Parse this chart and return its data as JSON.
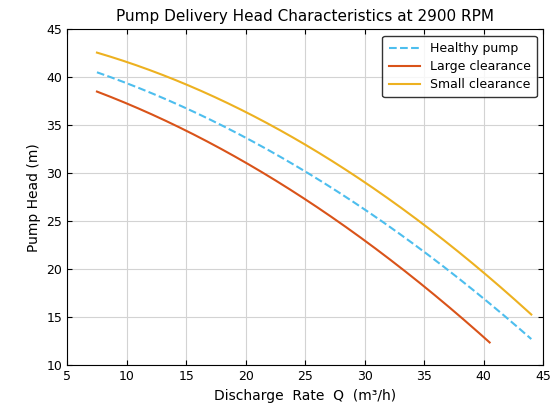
{
  "title": "Pump Delivery Head Characteristics at 2900 RPM",
  "xlabel": "Discharge  Rate  Q  (m³/h)",
  "ylabel": "Pump Head (m)",
  "xlim": [
    5,
    45
  ],
  "ylim": [
    10,
    45
  ],
  "xticks": [
    5,
    10,
    15,
    20,
    25,
    30,
    35,
    40,
    45
  ],
  "yticks": [
    10,
    15,
    20,
    25,
    30,
    35,
    40,
    45
  ],
  "healthy_pump": {
    "label": "Healthy pump",
    "color": "#4DBEEE",
    "linestyle": "--",
    "linewidth": 1.5,
    "x_start": 7.5,
    "x_end": 44.0,
    "pts": [
      [
        7.5,
        40.5
      ],
      [
        15,
        36.5
      ],
      [
        20,
        34.0
      ],
      [
        25,
        30.5
      ],
      [
        30,
        26.5
      ],
      [
        35,
        21.5
      ],
      [
        40,
        16.0
      ],
      [
        44,
        13.5
      ]
    ]
  },
  "large_clearance": {
    "label": "Large clearance",
    "color": "#D95319",
    "linestyle": "-",
    "linewidth": 1.5,
    "x_start": 7.5,
    "x_end": 40.5,
    "pts": [
      [
        7.5,
        38.5
      ],
      [
        15,
        34.5
      ],
      [
        20,
        31.0
      ],
      [
        25,
        27.5
      ],
      [
        30,
        23.0
      ],
      [
        35,
        18.0
      ],
      [
        40.5,
        12.5
      ]
    ]
  },
  "small_clearance": {
    "label": "Small clearance",
    "color": "#EDB120",
    "linestyle": "-",
    "linewidth": 1.5,
    "x_start": 7.5,
    "x_end": 44.0,
    "pts": [
      [
        7.5,
        42.5
      ],
      [
        10,
        41.5
      ],
      [
        15,
        39.5
      ],
      [
        20,
        36.5
      ],
      [
        25,
        33.0
      ],
      [
        30,
        29.0
      ],
      [
        35,
        24.5
      ],
      [
        40,
        19.5
      ],
      [
        44,
        15.5
      ]
    ]
  },
  "legend_loc": "upper right",
  "grid_color": "#d3d3d3",
  "grid_linewidth": 0.8,
  "bg_color": "#ffffff",
  "title_fontsize": 11,
  "label_fontsize": 10,
  "tick_fontsize": 9,
  "legend_fontsize": 9
}
